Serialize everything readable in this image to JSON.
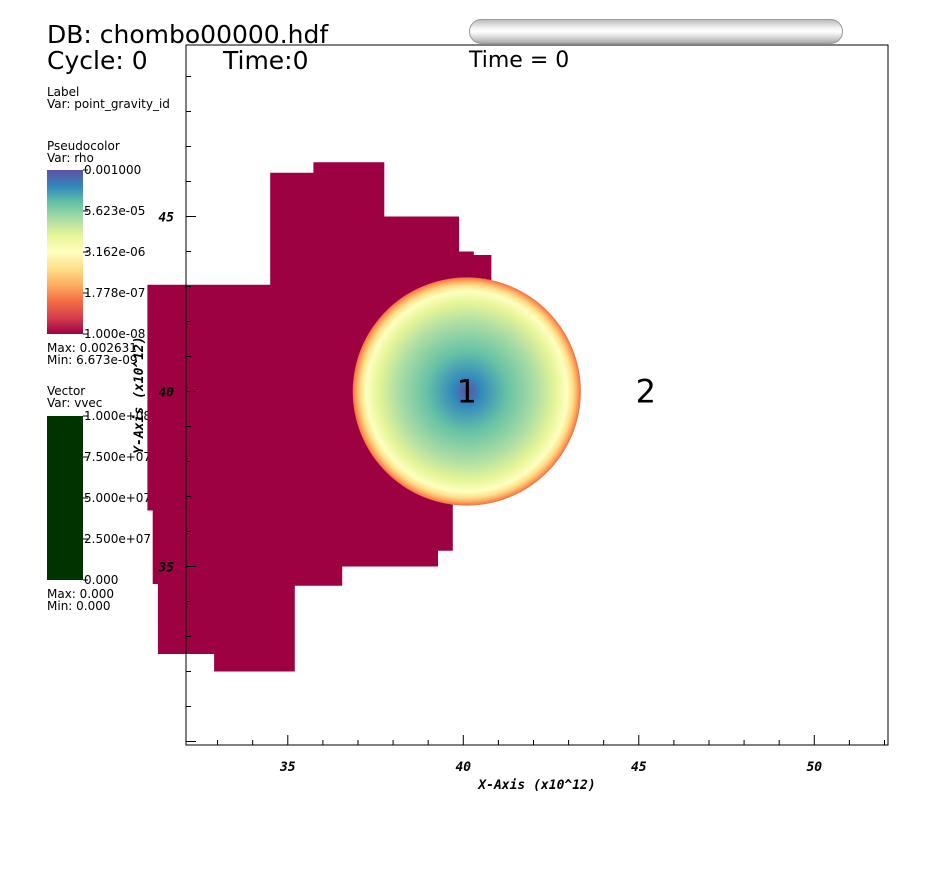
{
  "header": {
    "db_label": "DB: chombo00000.hdf",
    "cycle_label": "Cycle: 0",
    "time_label": "Time:0",
    "time_title": "Time = 0"
  },
  "legends": {
    "label": {
      "title": "Label",
      "var": "Var: point_gravity_id"
    },
    "pseudocolor": {
      "title": "Pseudocolor",
      "var": "Var: rho",
      "ticks": [
        "0.001000",
        "5.623e-05",
        "3.162e-06",
        "1.778e-07",
        "1.000e-08"
      ],
      "max": "Max:  0.002631",
      "min": "Min:  6.673e-09",
      "colors": [
        "#5e4fa2",
        "#3288bd",
        "#66c2a5",
        "#abdda4",
        "#e6f598",
        "#ffffbf",
        "#fee08b",
        "#fdae61",
        "#f46d43",
        "#d53e4f",
        "#9e0142"
      ]
    },
    "vector": {
      "title": "Vector",
      "var": "Var: vvec",
      "ticks": [
        "1.000e+08",
        "7.500e+07",
        "5.000e+07",
        "2.500e+07",
        "0.000"
      ],
      "max": "Max:  0.000",
      "min": "Min:  0.000",
      "color": "#003300"
    }
  },
  "chart_data": {
    "type": "heatmap",
    "title": "Time = 0",
    "xlabel": "X-Axis (x10^12)",
    "ylabel": "Y-Axis (x10^12)",
    "xlim": [
      32.1,
      52.1
    ],
    "ylim": [
      29.9,
      49.9
    ],
    "x_ticks": [
      35,
      40,
      45,
      50
    ],
    "y_ticks": [
      35,
      40,
      45
    ],
    "background_color": "#9e0142",
    "domain_outline": [
      [
        34.5,
        46.25
      ],
      [
        35.73,
        46.25
      ],
      [
        35.73,
        46.55
      ],
      [
        37.75,
        46.55
      ],
      [
        37.75,
        45.0
      ],
      [
        39.88,
        45.0
      ],
      [
        39.88,
        44.0
      ],
      [
        40.3,
        44.0
      ],
      [
        40.3,
        43.9
      ],
      [
        40.8,
        43.9
      ],
      [
        40.8,
        38.2
      ],
      [
        39.7,
        38.2
      ],
      [
        39.7,
        35.45
      ],
      [
        39.28,
        35.45
      ],
      [
        39.28,
        35.0
      ],
      [
        36.55,
        35.0
      ],
      [
        36.55,
        34.45
      ],
      [
        35.2,
        34.45
      ],
      [
        35.2,
        32.0
      ],
      [
        32.9,
        32.0
      ],
      [
        32.9,
        32.5
      ],
      [
        31.3,
        32.5
      ],
      [
        31.3,
        34.5
      ],
      [
        31.15,
        34.5
      ],
      [
        31.15,
        36.6
      ],
      [
        31.0,
        36.6
      ],
      [
        31.0,
        43.05
      ],
      [
        34.5,
        43.05
      ]
    ],
    "sphere": {
      "center": [
        40.1,
        40.0
      ],
      "radius": 3.25
    },
    "labels": [
      {
        "text": "1",
        "x": 40.1,
        "y": 40.0
      },
      {
        "text": "2",
        "x": 45.2,
        "y": 40.0
      }
    ]
  }
}
